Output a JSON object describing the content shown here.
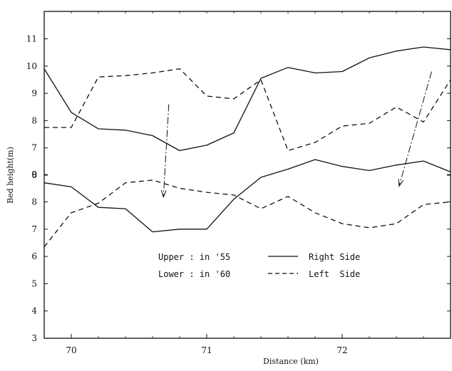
{
  "chart_data": {
    "type": "line",
    "xlabel": "Distance (km)",
    "ylabel": "Bed height(m)",
    "x_ticks": [
      "70",
      "71",
      "72"
    ],
    "x_tick_values": [
      70,
      71,
      72
    ],
    "xlim": [
      69.8,
      72.8
    ],
    "y_ticks": [
      "3",
      "4",
      "5",
      "6",
      "7",
      "8",
      "9",
      "10",
      "11"
    ],
    "y_tick_labels": [
      "3",
      "4",
      "5",
      "6",
      "7",
      "8",
      "9",
      "6",
      "7",
      "8",
      "9",
      "10",
      "11"
    ],
    "ylim": [
      3,
      11
    ],
    "grid": false,
    "panels": [
      {
        "name": "Upper",
        "y_label_values": [
          6,
          7,
          8,
          9,
          10,
          11
        ],
        "series": [
          {
            "name": "Right Side",
            "style": "solid",
            "x": [
              69.8,
              70.0,
              70.2,
              70.4,
              70.6,
              70.8,
              71.0,
              71.2,
              71.4,
              71.6,
              71.8,
              72.0,
              72.2,
              72.4,
              72.6,
              72.8
            ],
            "y": [
              9.9,
              8.3,
              7.7,
              7.65,
              7.45,
              6.9,
              7.1,
              7.55,
              9.55,
              9.95,
              9.75,
              9.8,
              10.3,
              10.55,
              10.7,
              10.6
            ]
          },
          {
            "name": "Left Side",
            "style": "dashed",
            "x": [
              69.8,
              70.0,
              70.2,
              70.4,
              70.6,
              70.8,
              71.0,
              71.2,
              71.4,
              71.6,
              71.8,
              72.0,
              72.2,
              72.4,
              72.6,
              72.8
            ],
            "y": [
              7.75,
              7.75,
              9.6,
              9.65,
              9.75,
              9.9,
              8.9,
              8.8,
              9.5,
              6.9,
              7.2,
              7.8,
              7.9,
              8.5,
              7.95,
              9.5
            ]
          }
        ]
      },
      {
        "name": "Lower",
        "y_label_values": [
          3,
          4,
          5,
          6,
          7,
          8,
          9
        ],
        "series": [
          {
            "name": "Right Side",
            "style": "solid",
            "x": [
              69.8,
              70.0,
              70.2,
              70.4,
              70.6,
              70.8,
              71.0,
              71.2,
              71.4,
              71.6,
              71.8,
              72.0,
              72.2,
              72.4,
              72.6,
              72.8
            ],
            "y": [
              8.7,
              8.55,
              7.8,
              7.75,
              6.9,
              7.0,
              7.0,
              8.1,
              8.9,
              9.2,
              9.55,
              9.3,
              9.15,
              9.35,
              9.5,
              9.1
            ]
          },
          {
            "name": "Left Side",
            "style": "dashed",
            "x": [
              69.8,
              70.0,
              70.2,
              70.4,
              70.6,
              70.8,
              71.0,
              71.2,
              71.4,
              71.6,
              71.8,
              72.0,
              72.2,
              72.4,
              72.6,
              72.8
            ],
            "y": [
              6.35,
              7.6,
              7.95,
              8.7,
              8.8,
              8.5,
              8.35,
              8.25,
              7.75,
              8.2,
              7.6,
              7.2,
              7.05,
              7.2,
              7.9,
              8.0
            ]
          }
        ]
      }
    ],
    "arrows": [
      {
        "from_x": 70.72,
        "from_y": 8.6,
        "to_x": 70.68,
        "to_y": 5.2
      },
      {
        "from_x": 72.66,
        "from_y": 9.8,
        "to_x": 72.42,
        "to_y": 5.6
      }
    ],
    "legend": {
      "placement": "center-left",
      "period_labels": [
        "Upper : in '55",
        "Lower : in '60"
      ],
      "entries": [
        {
          "label": "Right Side",
          "style": "solid"
        },
        {
          "label": "Left  Side",
          "style": "dashed"
        }
      ]
    }
  }
}
